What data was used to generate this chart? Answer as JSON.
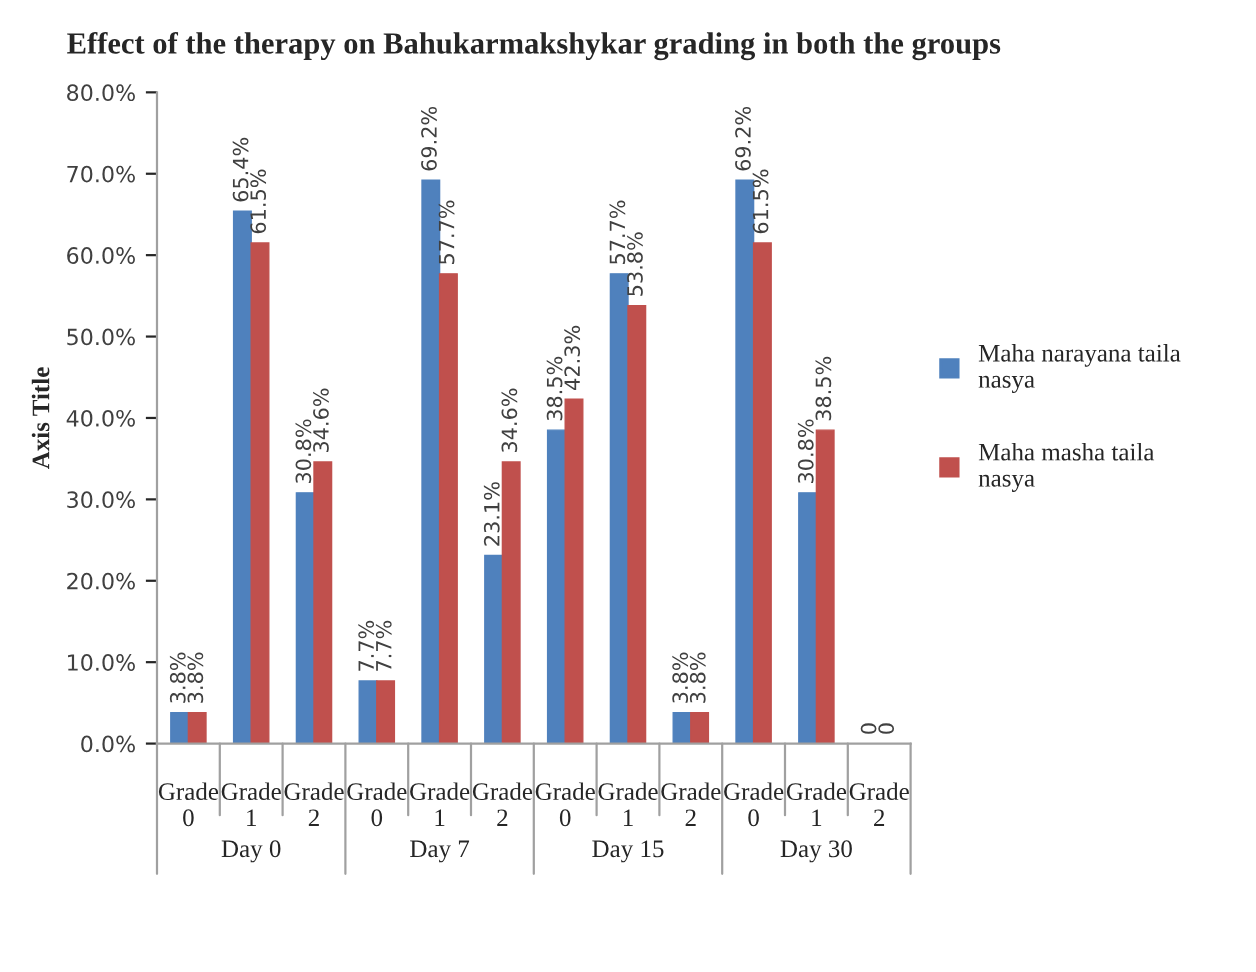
{
  "chart_data": {
    "type": "bar",
    "title": "Effect of the therapy on Bahukarmakshykar grading in both the groups",
    "ylabel": "Axis Title",
    "categories": [
      "Grade\n0",
      "Grade\n1",
      "Grade\n2",
      "Grade\n0",
      "Grade\n1",
      "Grade\n2",
      "Grade\n0",
      "Grade\n1",
      "Grade\n2",
      "Grade\n0",
      "Grade\n1",
      "Grade\n2"
    ],
    "annotations": [
      "Day 0",
      "Day 7",
      "Day 15",
      "Day 30"
    ],
    "series": [
      {
        "name": "Maha narayana taila\nnasya",
        "color": "#4f81bd",
        "values": [
          3.8,
          65.4,
          30.8,
          7.7,
          69.2,
          23.1,
          38.5,
          57.7,
          3.8,
          69.2,
          30.8,
          0
        ],
        "value_labels": [
          "3.8%",
          "65.4%",
          "30.8%",
          "7.7%",
          "69.2%",
          "23.1%",
          "38.5%",
          "57.7%",
          "3.8%",
          "69.2%",
          "30.8%",
          "0"
        ]
      },
      {
        "name": "Maha masha taila\nnasya",
        "color": "#c0504d",
        "values": [
          3.8,
          61.5,
          34.6,
          7.7,
          57.7,
          34.6,
          42.3,
          53.8,
          3.8,
          61.5,
          38.5,
          0
        ],
        "value_labels": [
          "3.8%",
          "61.5%",
          "34.6%",
          "7.7%",
          "57.7%",
          "34.6%",
          "42.3%",
          "53.8%",
          "3.8%",
          "61.5%",
          "38.5%",
          "0"
        ]
      }
    ],
    "ylim": [
      0,
      80
    ],
    "yticks": [
      {
        "value": 0,
        "label": "0.0%"
      },
      {
        "value": 10,
        "label": "10.0%"
      },
      {
        "value": 20,
        "label": "20.0%"
      },
      {
        "value": 30,
        "label": "30.0%"
      },
      {
        "value": 40,
        "label": "40.0%"
      },
      {
        "value": 50,
        "label": "50.0%"
      },
      {
        "value": 60,
        "label": "60.0%"
      },
      {
        "value": 70,
        "label": "70.0%"
      },
      {
        "value": 80,
        "label": "80.0%"
      }
    ],
    "grid": false,
    "legend": "right"
  }
}
